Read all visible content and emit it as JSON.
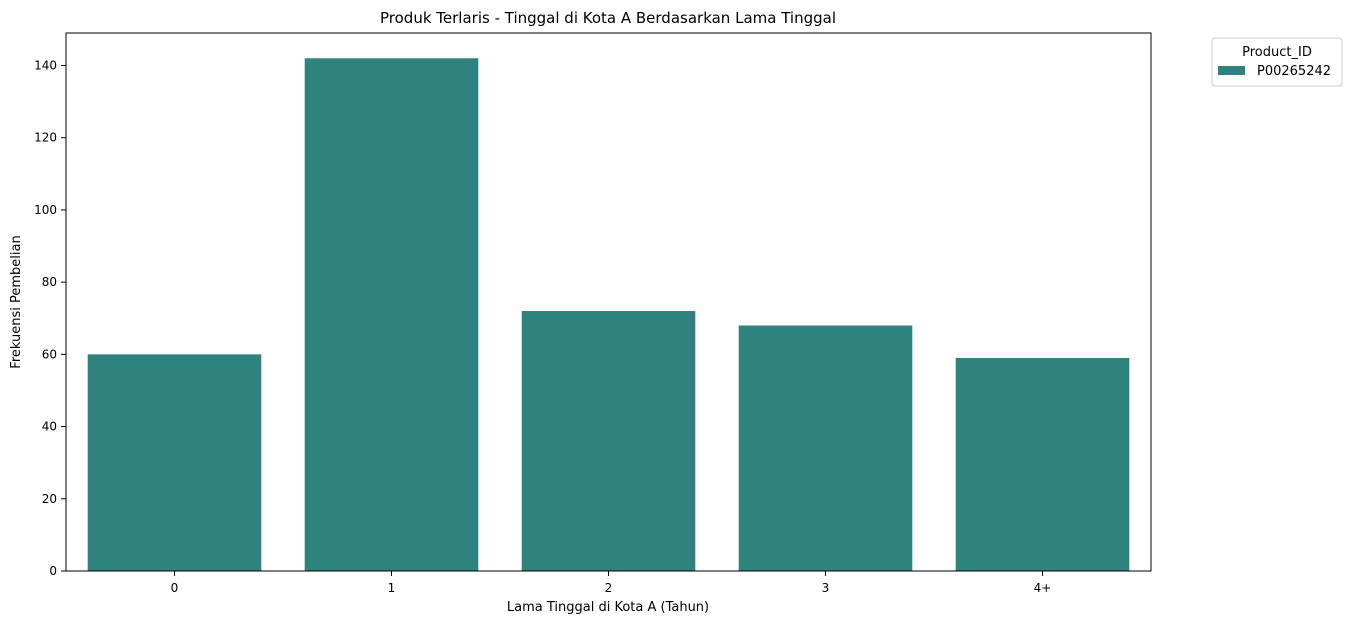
{
  "chart_data": {
    "type": "bar",
    "title": "Produk Terlaris - Tinggal di Kota A Berdasarkan Lama Tinggal",
    "xlabel": "Lama Tinggal di Kota A (Tahun)",
    "ylabel": "Frekuensi Pembelian",
    "categories": [
      "0",
      "1",
      "2",
      "3",
      "4+"
    ],
    "series": [
      {
        "name": "P00265242",
        "color": "#2e837e",
        "values": [
          60,
          142,
          72,
          68,
          59
        ]
      }
    ],
    "ylim": [
      0,
      149
    ],
    "yticks": [
      0,
      20,
      40,
      60,
      80,
      100,
      120,
      140
    ],
    "legend": {
      "title": "Product_ID",
      "position": "outside-top-right"
    },
    "grid": false
  }
}
